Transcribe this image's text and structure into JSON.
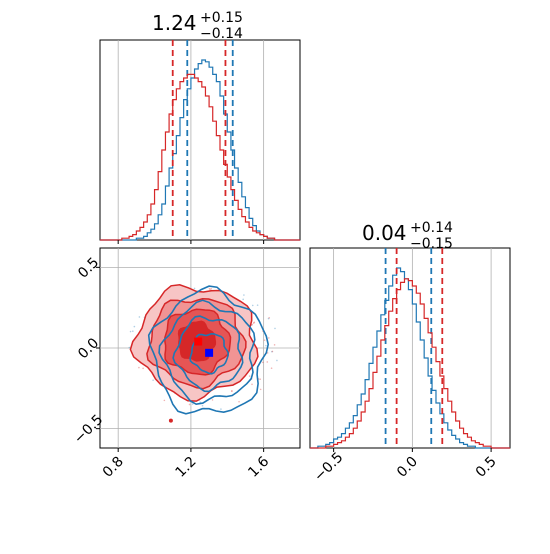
{
  "chart_data": {
    "type": "corner",
    "colors": {
      "series_a": "#1f77b4",
      "series_b": "#d62728",
      "marker_a": "#0000ff",
      "marker_b": "#ff0000",
      "grid": "#b0b0b0"
    },
    "panels": [
      {
        "id": "hist-param1",
        "type": "histogram",
        "title": {
          "median": "1.24",
          "plus": "+0.15",
          "minus": "−0.14"
        },
        "xlim": [
          0.7,
          1.8
        ],
        "xticks": [
          0.8,
          1.2,
          1.6
        ],
        "bins": [
          0.7,
          0.72,
          0.74,
          0.76,
          0.78,
          0.8,
          0.82,
          0.84,
          0.86,
          0.88,
          0.9,
          0.92,
          0.94,
          0.96,
          0.98,
          1.0,
          1.02,
          1.04,
          1.06,
          1.08,
          1.1,
          1.12,
          1.14,
          1.16,
          1.18,
          1.2,
          1.22,
          1.24,
          1.26,
          1.28,
          1.3,
          1.32,
          1.34,
          1.36,
          1.38,
          1.4,
          1.42,
          1.44,
          1.46,
          1.48,
          1.5,
          1.52,
          1.54,
          1.56,
          1.58,
          1.6,
          1.62,
          1.64,
          1.66,
          1.68,
          1.7,
          1.72,
          1.74,
          1.76,
          1.78,
          1.8
        ],
        "series": [
          {
            "color": "#1f77b4",
            "quantile_lines": [
              1.18,
              1.43
            ],
            "counts": [
              0,
              0,
              0,
              0,
              0,
              0,
              0,
              0,
              0,
              0,
              1,
              1,
              2,
              4,
              6,
              9,
              14,
              20,
              30,
              40,
              48,
              58,
              68,
              78,
              84,
              90,
              95,
              98,
              100,
              99,
              96,
              92,
              88,
              80,
              70,
              60,
              50,
              40,
              32,
              24,
              18,
              12,
              8,
              5,
              3,
              2,
              1,
              1,
              0,
              0,
              0,
              0,
              0,
              0,
              0
            ]
          },
          {
            "color": "#d62728",
            "quantile_lines": [
              1.1,
              1.39
            ],
            "counts": [
              0,
              0,
              0,
              0,
              0,
              0,
              1,
              1,
              2,
              3,
              5,
              7,
              10,
              14,
              20,
              28,
              38,
              50,
              60,
              70,
              78,
              84,
              88,
              90,
              92,
              92,
              90,
              88,
              85,
              80,
              74,
              66,
              58,
              50,
              42,
              35,
              28,
              22,
              17,
              13,
              10,
              7,
              5,
              4,
              3,
              2,
              1,
              1,
              0,
              0,
              0,
              0,
              0,
              0,
              0
            ]
          }
        ]
      },
      {
        "id": "hist-param2",
        "type": "histogram",
        "title": {
          "median": "0.04",
          "plus": "+0.14",
          "minus": "−0.15"
        },
        "xlim": [
          -0.65,
          0.62
        ],
        "xticks": [
          -0.5,
          0.0,
          0.5
        ],
        "xtick_labels": [
          "−0.5",
          "0.0",
          "0.5"
        ],
        "bins": [
          -0.65,
          -0.625,
          -0.6,
          -0.575,
          -0.55,
          -0.525,
          -0.5,
          -0.475,
          -0.45,
          -0.425,
          -0.4,
          -0.375,
          -0.35,
          -0.325,
          -0.3,
          -0.275,
          -0.25,
          -0.225,
          -0.2,
          -0.175,
          -0.15,
          -0.125,
          -0.1,
          -0.075,
          -0.05,
          -0.025,
          0.0,
          0.025,
          0.05,
          0.075,
          0.1,
          0.125,
          0.15,
          0.175,
          0.2,
          0.225,
          0.25,
          0.275,
          0.3,
          0.325,
          0.35,
          0.375,
          0.4,
          0.425,
          0.45,
          0.475,
          0.5,
          0.525,
          0.55,
          0.575,
          0.6,
          0.62
        ],
        "series": [
          {
            "color": "#1f77b4",
            "quantile_lines": [
              -0.17,
              0.12
            ],
            "counts": [
              0,
              0,
              1,
              1,
              2,
              3,
              5,
              6,
              8,
              11,
              14,
              18,
              24,
              30,
              38,
              47,
              56,
              65,
              74,
              82,
              90,
              96,
              100,
              98,
              94,
              88,
              80,
              70,
              60,
              50,
              40,
              32,
              25,
              19,
              14,
              10,
              7,
              5,
              3,
              2,
              1,
              1,
              0,
              0,
              0,
              0,
              0,
              0,
              0,
              0,
              0
            ]
          },
          {
            "color": "#d62728",
            "quantile_lines": [
              -0.1,
              0.19
            ],
            "counts": [
              0,
              0,
              0,
              0,
              1,
              1,
              2,
              3,
              4,
              6,
              8,
              11,
              15,
              20,
              26,
              33,
              42,
              51,
              60,
              68,
              76,
              83,
              88,
              92,
              94,
              93,
              90,
              86,
              80,
              72,
              64,
              56,
              48,
              40,
              33,
              26,
              20,
              15,
              11,
              8,
              6,
              4,
              3,
              2,
              1,
              1,
              0,
              0,
              0,
              0,
              0
            ]
          }
        ]
      },
      {
        "id": "joint-param1-param2",
        "type": "contour",
        "xlim": [
          0.7,
          1.8
        ],
        "ylim": [
          -0.62,
          0.62
        ],
        "xticks": [
          0.8,
          1.2,
          1.6
        ],
        "yticks": [
          -0.5,
          0.0,
          0.5
        ],
        "ytick_labels": [
          "−0.5",
          "0.0",
          "0.5"
        ],
        "series": [
          {
            "color": "#1f77b4",
            "center": [
              1.3,
              -0.03
            ],
            "radii": [
              [
                0.1,
                0.12
              ],
              [
                0.18,
                0.22
              ],
              [
                0.25,
                0.3
              ],
              [
                0.31,
                0.38
              ]
            ],
            "marker": [
              1.3,
              -0.03
            ],
            "marker_color": "#0000ff"
          },
          {
            "color": "#d62728",
            "center": [
              1.23,
              0.04
            ],
            "radii": [
              [
                0.1,
                0.12
              ],
              [
                0.18,
                0.2
              ],
              [
                0.26,
                0.27
              ],
              [
                0.33,
                0.34
              ]
            ],
            "marker": [
              1.24,
              0.04
            ],
            "marker_color": "#ff0000",
            "filled": true
          }
        ]
      }
    ]
  }
}
